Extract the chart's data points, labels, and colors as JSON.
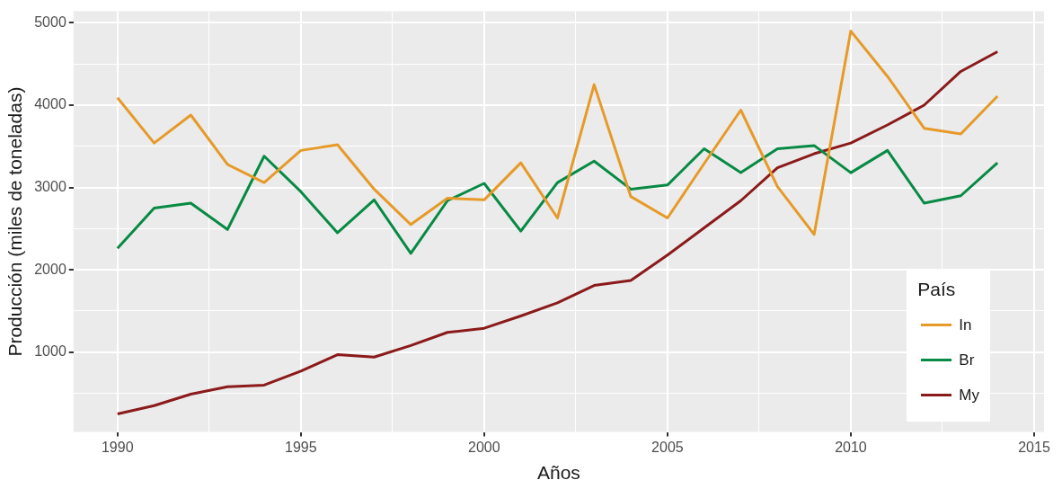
{
  "chart_data": {
    "type": "line",
    "xlabel": "Años",
    "ylabel": "Producción (miles de toneladas)",
    "legend_title": "País",
    "legend": "bottom right",
    "grid": true,
    "marker": "none",
    "line_style": "solid",
    "x": [
      1990,
      1991,
      1992,
      1993,
      1994,
      1995,
      1996,
      1997,
      1998,
      1999,
      2000,
      2001,
      2002,
      2003,
      2004,
      2005,
      2006,
      2007,
      2008,
      2009,
      2010,
      2011,
      2012,
      2013,
      2014
    ],
    "xlim": [
      1988.8,
      2015.27
    ],
    "xticks": [
      1990,
      {
        "value": 1992.5,
        "label": null
      },
      1995,
      {
        "value": 1997.5,
        "label": null
      },
      2000,
      {
        "value": 2002.5,
        "label": null
      },
      2005,
      {
        "value": 2007.5,
        "label": null
      },
      2010,
      {
        "value": 2012.5,
        "label": null
      },
      2015
    ],
    "ylim": [
      30,
      5140
    ],
    "yticks": [
      {
        "value": 500,
        "label": null
      },
      1000,
      {
        "value": 1500,
        "label": null
      },
      2000,
      {
        "value": 2500,
        "label": null
      },
      3000,
      {
        "value": 3500,
        "label": null
      },
      4000,
      {
        "value": 4500,
        "label": null
      },
      5000
    ],
    "series": [
      {
        "name": "In",
        "color": "#e69a28",
        "values": [
          4090,
          3540,
          3880,
          3280,
          3060,
          3450,
          3520,
          2980,
          2550,
          2870,
          2850,
          3300,
          2630,
          4250,
          2890,
          2630,
          3290,
          3940,
          3010,
          2430,
          4900,
          4350,
          3720,
          3650,
          4110
        ]
      },
      {
        "name": "Br",
        "color": "#078a44",
        "values": [
          2260,
          2750,
          2810,
          2490,
          3380,
          2950,
          2450,
          2850,
          2200,
          2840,
          3050,
          2470,
          3060,
          3320,
          2980,
          3030,
          3470,
          3180,
          3470,
          3510,
          3180,
          3450,
          2810,
          2900,
          3300
        ]
      },
      {
        "name": "My",
        "color": "#8b1a1a",
        "values": [
          250,
          350,
          490,
          580,
          600,
          770,
          970,
          940,
          1080,
          1240,
          1290,
          1440,
          1600,
          1810,
          1870,
          2180,
          2510,
          2840,
          3240,
          3410,
          3540,
          3760,
          4000,
          4410,
          4650
        ]
      }
    ]
  }
}
